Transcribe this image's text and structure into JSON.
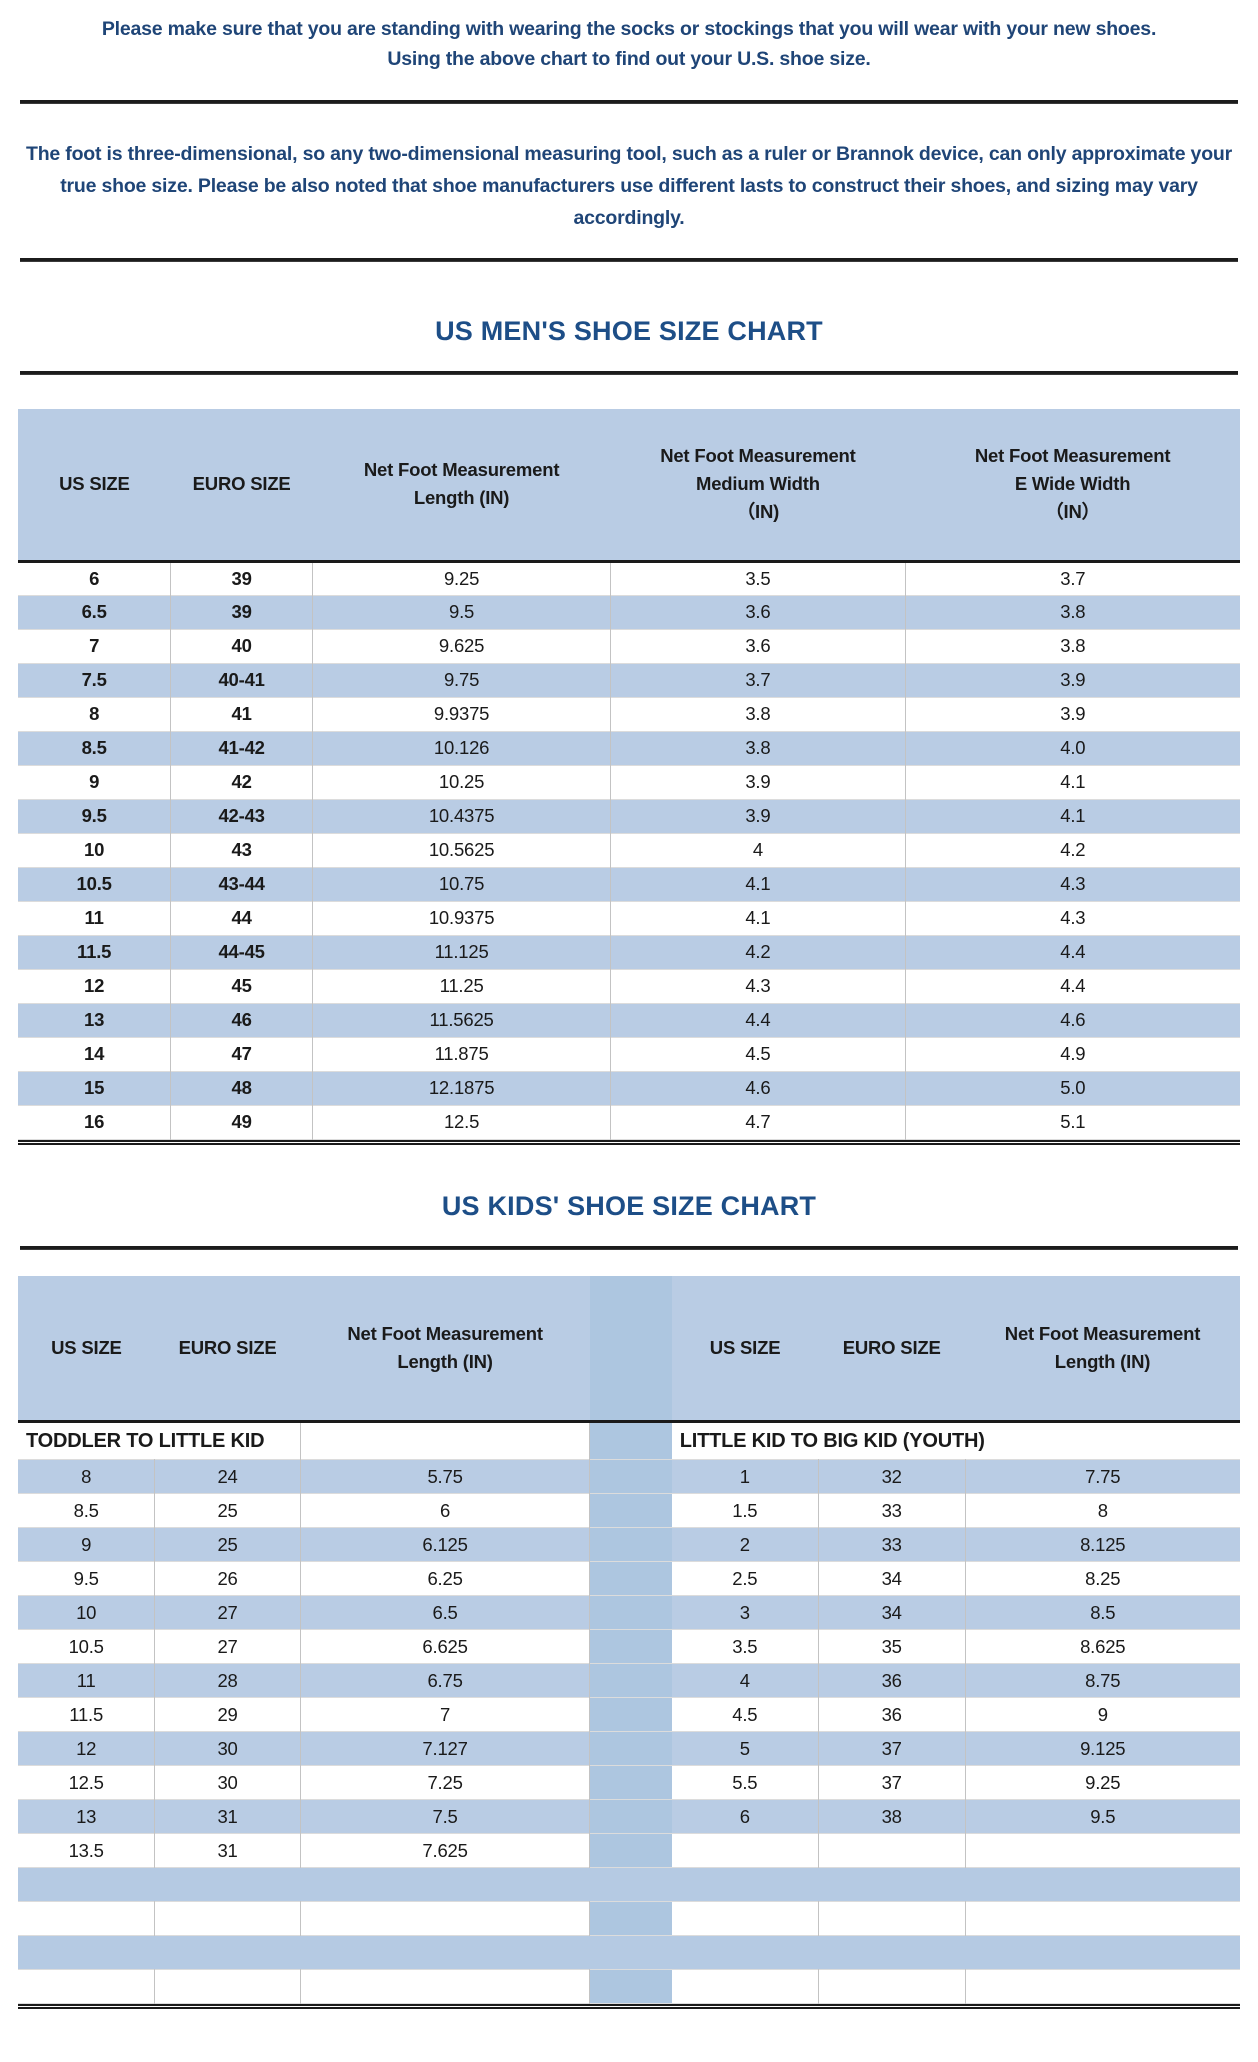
{
  "intro": {
    "line1": "Please make sure that you are standing with wearing the socks or stockings that you will wear with your new shoes.",
    "line2": "Using the above chart to find out your U.S. shoe size.",
    "note": "The foot is three-dimensional, so any two-dimensional measuring tool, such as a ruler or Brannok device, can only approximate your true shoe size. Please be also noted that shoe manufacturers use different lasts to construct their shoes, and sizing may vary accordingly."
  },
  "colors": {
    "band_blue": "#b9cce4",
    "gap_blue": "#adc6e0",
    "title_blue": "#1d4e87",
    "intro_blue": "#1f4577",
    "text": "#1a1a1a"
  },
  "mens_chart": {
    "title": "US MEN'S SHOE SIZE CHART",
    "headers": [
      [
        "US SIZE"
      ],
      [
        "EURO SIZE"
      ],
      [
        "Net Foot Measurement",
        "Length (IN)"
      ],
      [
        "Net Foot Measurement",
        "Medium Width",
        "（IN)"
      ],
      [
        "Net Foot Measurement",
        "E Wide Width",
        "（IN）"
      ]
    ],
    "col_widths": [
      "12.5%",
      "11.6%",
      "24.4%",
      "24.1%",
      "27.4%"
    ],
    "rows": [
      [
        "6",
        "39",
        "9.25",
        "3.5",
        "3.7"
      ],
      [
        "6.5",
        "39",
        "9.5",
        "3.6",
        "3.8"
      ],
      [
        "7",
        "40",
        "9.625",
        "3.6",
        "3.8"
      ],
      [
        "7.5",
        "40-41",
        "9.75",
        "3.7",
        "3.9"
      ],
      [
        "8",
        "41",
        "9.9375",
        "3.8",
        "3.9"
      ],
      [
        "8.5",
        "41-42",
        "10.126",
        "3.8",
        "4.0"
      ],
      [
        "9",
        "42",
        "10.25",
        "3.9",
        "4.1"
      ],
      [
        "9.5",
        "42-43",
        "10.4375",
        "3.9",
        "4.1"
      ],
      [
        "10",
        "43",
        "10.5625",
        "4",
        "4.2"
      ],
      [
        "10.5",
        "43-44",
        "10.75",
        "4.1",
        "4.3"
      ],
      [
        "11",
        "44",
        "10.9375",
        "4.1",
        "4.3"
      ],
      [
        "11.5",
        "44-45",
        "11.125",
        "4.2",
        "4.4"
      ],
      [
        "12",
        "45",
        "11.25",
        "4.3",
        "4.4"
      ],
      [
        "13",
        "46",
        "11.5625",
        "4.4",
        "4.6"
      ],
      [
        "14",
        "47",
        "11.875",
        "4.5",
        "4.9"
      ],
      [
        "15",
        "48",
        "12.1875",
        "4.6",
        "5.0"
      ],
      [
        "16",
        "49",
        "12.5",
        "4.7",
        "5.1"
      ]
    ]
  },
  "kids_chart": {
    "title": "US KIDS' SHOE SIZE CHART",
    "headers_left": [
      [
        "US SIZE"
      ],
      [
        "EURO SIZE"
      ],
      [
        "Net Foot Measurement",
        "Length (IN)"
      ]
    ],
    "headers_right": [
      [
        "US SIZE"
      ],
      [
        "EURO SIZE"
      ],
      [
        "Net Foot Measurement",
        "Length (IN)"
      ]
    ],
    "col_widths": [
      "11.2%",
      "11.9%",
      "23.7%",
      "6.7%",
      "12.0%",
      "12.0%",
      "22.5%"
    ],
    "section_left": "TODDLER TO LITTLE KID",
    "section_right": "LITTLE KID TO BIG KID (YOUTH)",
    "left_rows": [
      [
        "8",
        "24",
        "5.75"
      ],
      [
        "8.5",
        "25",
        "6"
      ],
      [
        "9",
        "25",
        "6.125"
      ],
      [
        "9.5",
        "26",
        "6.25"
      ],
      [
        "10",
        "27",
        "6.5"
      ],
      [
        "10.5",
        "27",
        "6.625"
      ],
      [
        "11",
        "28",
        "6.75"
      ],
      [
        "11.5",
        "29",
        "7"
      ],
      [
        "12",
        "30",
        "7.127"
      ],
      [
        "12.5",
        "30",
        "7.25"
      ],
      [
        "13",
        "31",
        "7.5"
      ],
      [
        "13.5",
        "31",
        "7.625"
      ]
    ],
    "right_rows": [
      [
        "1",
        "32",
        "7.75"
      ],
      [
        "1.5",
        "33",
        "8"
      ],
      [
        "2",
        "33",
        "8.125"
      ],
      [
        "2.5",
        "34",
        "8.25"
      ],
      [
        "3",
        "34",
        "8.5"
      ],
      [
        "3.5",
        "35",
        "8.625"
      ],
      [
        "4",
        "36",
        "8.75"
      ],
      [
        "4.5",
        "36",
        "9"
      ],
      [
        "5",
        "37",
        "9.125"
      ],
      [
        "5.5",
        "37",
        "9.25"
      ],
      [
        "6",
        "38",
        "9.5"
      ]
    ],
    "total_body_rows": 16
  }
}
